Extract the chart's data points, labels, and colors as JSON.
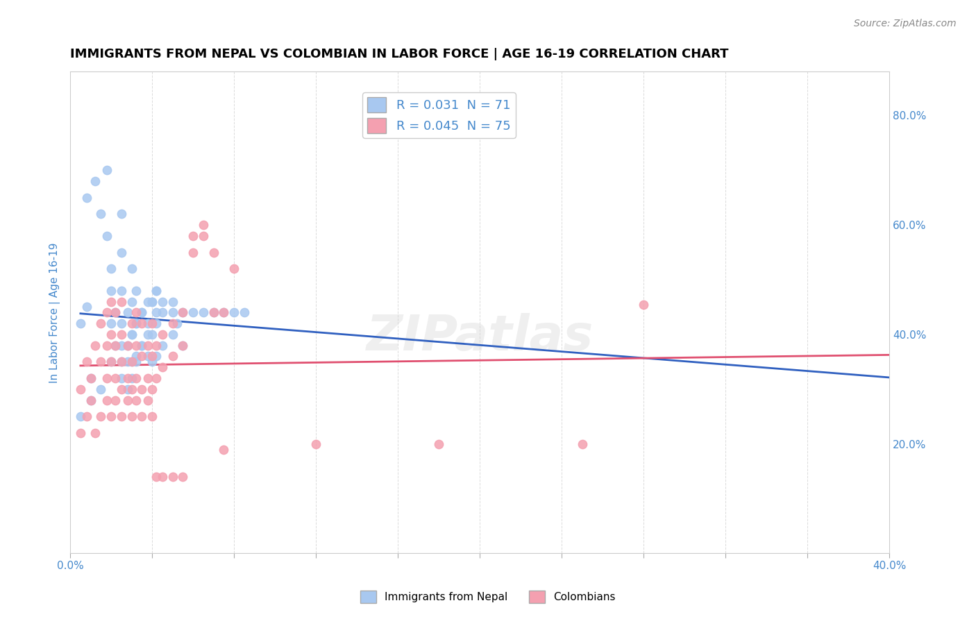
{
  "title": "IMMIGRANTS FROM NEPAL VS COLOMBIAN IN LABOR FORCE | AGE 16-19 CORRELATION CHART",
  "source": "Source: ZipAtlas.com",
  "ylabel": "In Labor Force | Age 16-19",
  "legend_nepal_R": "0.031",
  "legend_nepal_N": "71",
  "legend_colombian_R": "0.045",
  "legend_colombian_N": "75",
  "nepal_color": "#a8c8f0",
  "colombian_color": "#f4a0b0",
  "nepal_line_color": "#3060c0",
  "colombian_line_color": "#e05070",
  "watermark": "ZIPatlas",
  "nepal_scatter_x": [
    0.005,
    0.008,
    0.008,
    0.012,
    0.015,
    0.018,
    0.018,
    0.02,
    0.02,
    0.02,
    0.022,
    0.022,
    0.025,
    0.025,
    0.025,
    0.025,
    0.025,
    0.028,
    0.028,
    0.03,
    0.03,
    0.03,
    0.03,
    0.032,
    0.032,
    0.032,
    0.035,
    0.035,
    0.038,
    0.038,
    0.038,
    0.04,
    0.04,
    0.04,
    0.042,
    0.042,
    0.042,
    0.045,
    0.045,
    0.05,
    0.05,
    0.052,
    0.055,
    0.055,
    0.06,
    0.065,
    0.07,
    0.075,
    0.08,
    0.085,
    0.005,
    0.01,
    0.01,
    0.015,
    0.02,
    0.025,
    0.025,
    0.028,
    0.028,
    0.03,
    0.03,
    0.032,
    0.032,
    0.035,
    0.035,
    0.038,
    0.04,
    0.042,
    0.042,
    0.045,
    0.05
  ],
  "nepal_scatter_y": [
    0.42,
    0.45,
    0.65,
    0.68,
    0.62,
    0.58,
    0.7,
    0.42,
    0.48,
    0.52,
    0.38,
    0.44,
    0.35,
    0.42,
    0.48,
    0.55,
    0.62,
    0.38,
    0.44,
    0.35,
    0.4,
    0.46,
    0.52,
    0.36,
    0.42,
    0.48,
    0.38,
    0.44,
    0.36,
    0.4,
    0.46,
    0.35,
    0.4,
    0.46,
    0.36,
    0.42,
    0.48,
    0.38,
    0.44,
    0.4,
    0.46,
    0.42,
    0.38,
    0.44,
    0.44,
    0.44,
    0.44,
    0.44,
    0.44,
    0.44,
    0.25,
    0.28,
    0.32,
    0.3,
    0.35,
    0.32,
    0.38,
    0.3,
    0.35,
    0.32,
    0.4,
    0.35,
    0.42,
    0.38,
    0.44,
    0.42,
    0.46,
    0.44,
    0.48,
    0.46,
    0.44
  ],
  "colombian_scatter_x": [
    0.005,
    0.008,
    0.01,
    0.012,
    0.015,
    0.015,
    0.018,
    0.018,
    0.018,
    0.02,
    0.02,
    0.02,
    0.022,
    0.022,
    0.022,
    0.025,
    0.025,
    0.025,
    0.025,
    0.028,
    0.028,
    0.03,
    0.03,
    0.03,
    0.032,
    0.032,
    0.032,
    0.035,
    0.035,
    0.035,
    0.038,
    0.038,
    0.04,
    0.04,
    0.04,
    0.042,
    0.042,
    0.045,
    0.045,
    0.05,
    0.05,
    0.055,
    0.055,
    0.06,
    0.065,
    0.07,
    0.075,
    0.08,
    0.28,
    0.005,
    0.008,
    0.01,
    0.012,
    0.015,
    0.018,
    0.02,
    0.022,
    0.025,
    0.028,
    0.03,
    0.032,
    0.035,
    0.038,
    0.04,
    0.042,
    0.045,
    0.05,
    0.055,
    0.06,
    0.065,
    0.07,
    0.075,
    0.12,
    0.18,
    0.25
  ],
  "colombian_scatter_y": [
    0.3,
    0.35,
    0.32,
    0.38,
    0.35,
    0.42,
    0.32,
    0.38,
    0.44,
    0.35,
    0.4,
    0.46,
    0.32,
    0.38,
    0.44,
    0.3,
    0.35,
    0.4,
    0.46,
    0.32,
    0.38,
    0.3,
    0.35,
    0.42,
    0.32,
    0.38,
    0.44,
    0.3,
    0.36,
    0.42,
    0.32,
    0.38,
    0.3,
    0.36,
    0.42,
    0.32,
    0.38,
    0.34,
    0.4,
    0.36,
    0.42,
    0.38,
    0.44,
    0.58,
    0.58,
    0.44,
    0.44,
    0.52,
    0.455,
    0.22,
    0.25,
    0.28,
    0.22,
    0.25,
    0.28,
    0.25,
    0.28,
    0.25,
    0.28,
    0.25,
    0.28,
    0.25,
    0.28,
    0.25,
    0.14,
    0.14,
    0.14,
    0.14,
    0.55,
    0.6,
    0.55,
    0.19,
    0.2,
    0.2,
    0.2
  ],
  "xlim": [
    0.0,
    0.4
  ],
  "ylim": [
    0.0,
    0.88
  ],
  "right_yticks": [
    0.0,
    0.2,
    0.4,
    0.6,
    0.8
  ],
  "right_yticklabels": [
    "",
    "20.0%",
    "40.0%",
    "60.0%",
    "80.0%"
  ]
}
